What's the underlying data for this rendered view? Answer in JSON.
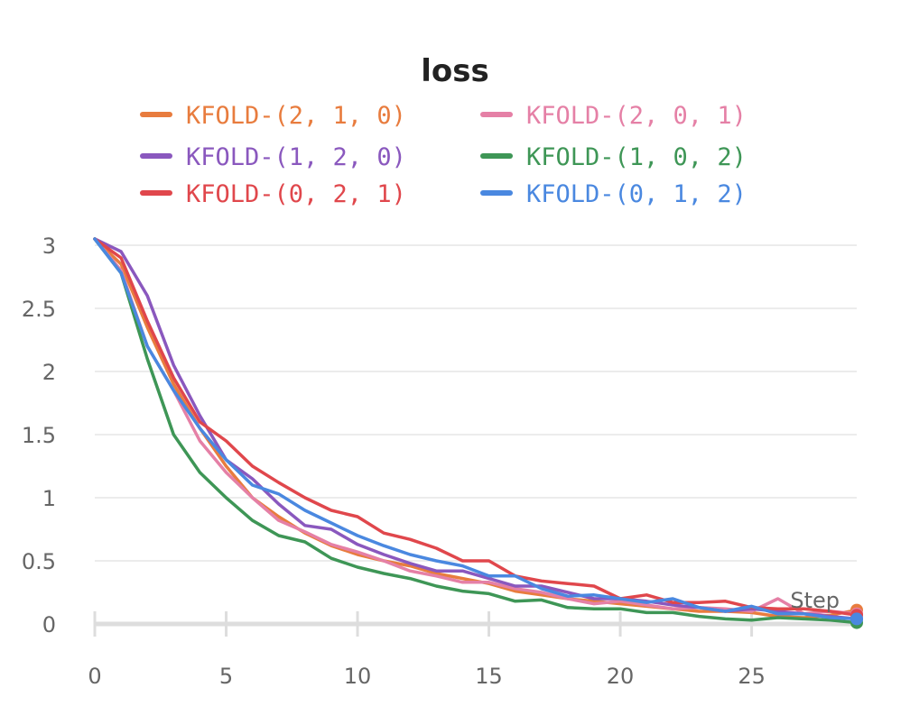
{
  "chart_data": {
    "type": "line",
    "title": "loss",
    "xlabel": "Step",
    "ylabel": "",
    "xlim": [
      0,
      29
    ],
    "ylim": [
      0,
      3
    ],
    "xticks": [
      "0",
      "5",
      "10",
      "15",
      "20",
      "25"
    ],
    "yticks": [
      "0",
      "0.5",
      "1",
      "1.5",
      "2",
      "2.5",
      "3"
    ],
    "grid": true,
    "legend_position": "top",
    "x": [
      0,
      1,
      2,
      3,
      4,
      5,
      6,
      7,
      8,
      9,
      10,
      11,
      12,
      13,
      14,
      15,
      16,
      17,
      18,
      19,
      20,
      21,
      22,
      23,
      24,
      25,
      26,
      27,
      28,
      29
    ],
    "series": [
      {
        "name": "KFOLD-(2, 1, 0)",
        "color": "#e87c3e",
        "values": [
          3.05,
          2.85,
          2.35,
          1.9,
          1.55,
          1.25,
          1.0,
          0.85,
          0.72,
          0.62,
          0.55,
          0.5,
          0.46,
          0.4,
          0.36,
          0.32,
          0.26,
          0.23,
          0.2,
          0.18,
          0.16,
          0.14,
          0.12,
          0.1,
          0.1,
          0.09,
          0.06,
          0.05,
          0.07,
          0.11
        ]
      },
      {
        "name": "KFOLD-(2, 0, 1)",
        "color": "#e580a6",
        "values": [
          3.05,
          2.8,
          2.2,
          1.85,
          1.45,
          1.2,
          1.0,
          0.82,
          0.73,
          0.63,
          0.57,
          0.5,
          0.42,
          0.38,
          0.33,
          0.33,
          0.28,
          0.25,
          0.2,
          0.16,
          0.18,
          0.15,
          0.12,
          0.13,
          0.12,
          0.1,
          0.2,
          0.08,
          0.1,
          0.08
        ]
      },
      {
        "name": "KFOLD-(1, 2, 0)",
        "color": "#8a58be",
        "values": [
          3.05,
          2.95,
          2.6,
          2.05,
          1.65,
          1.3,
          1.15,
          0.95,
          0.78,
          0.75,
          0.63,
          0.55,
          0.48,
          0.42,
          0.42,
          0.36,
          0.3,
          0.3,
          0.25,
          0.2,
          0.2,
          0.18,
          0.15,
          0.13,
          0.1,
          0.12,
          0.1,
          0.08,
          0.06,
          0.04
        ]
      },
      {
        "name": "KFOLD-(1, 0, 2)",
        "color": "#3e9656",
        "values": [
          3.05,
          2.78,
          2.1,
          1.5,
          1.2,
          1.0,
          0.82,
          0.7,
          0.65,
          0.52,
          0.45,
          0.4,
          0.36,
          0.3,
          0.26,
          0.24,
          0.18,
          0.19,
          0.13,
          0.12,
          0.12,
          0.09,
          0.09,
          0.06,
          0.04,
          0.03,
          0.05,
          0.04,
          0.03,
          0.01
        ]
      },
      {
        "name": "KFOLD-(0, 2, 1)",
        "color": "#e0474c",
        "values": [
          3.05,
          2.9,
          2.4,
          1.95,
          1.6,
          1.45,
          1.25,
          1.12,
          1.0,
          0.9,
          0.85,
          0.72,
          0.67,
          0.6,
          0.5,
          0.5,
          0.38,
          0.34,
          0.32,
          0.3,
          0.2,
          0.23,
          0.17,
          0.17,
          0.18,
          0.13,
          0.12,
          0.12,
          0.1,
          0.07
        ]
      },
      {
        "name": "KFOLD-(0, 1, 2)",
        "color": "#4a88e0",
        "values": [
          3.05,
          2.78,
          2.2,
          1.85,
          1.55,
          1.3,
          1.1,
          1.03,
          0.9,
          0.8,
          0.7,
          0.62,
          0.55,
          0.5,
          0.46,
          0.38,
          0.38,
          0.28,
          0.22,
          0.23,
          0.2,
          0.17,
          0.2,
          0.13,
          0.1,
          0.14,
          0.08,
          0.08,
          0.05,
          0.04
        ]
      }
    ],
    "legend_order": [
      0,
      1,
      2,
      3,
      4,
      5
    ]
  }
}
